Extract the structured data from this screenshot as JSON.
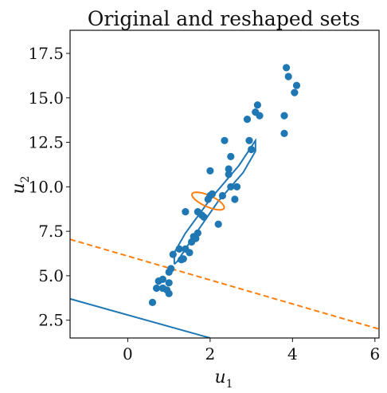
{
  "chart_data": {
    "type": "scatter",
    "title": "Original and reshaped sets",
    "xlabel": {
      "base": "u",
      "sub": "1"
    },
    "ylabel": {
      "base": "u",
      "sub": "2"
    },
    "xlim": [
      -1.4,
      6.1
    ],
    "ylim": [
      1.5,
      18.8
    ],
    "xticks": [
      0,
      2,
      4,
      6
    ],
    "yticks": [
      2.5,
      5.0,
      7.5,
      10.0,
      12.5,
      15.0,
      17.5
    ],
    "grid": false,
    "colors": {
      "blue": "#1f77b4",
      "orange": "#ff7f0e"
    },
    "points": [
      [
        0.6,
        3.5
      ],
      [
        0.7,
        4.3
      ],
      [
        0.75,
        4.7
      ],
      [
        0.85,
        4.8
      ],
      [
        0.85,
        4.3
      ],
      [
        0.95,
        4.2
      ],
      [
        1.0,
        4.0
      ],
      [
        1.0,
        4.6
      ],
      [
        1.0,
        5.2
      ],
      [
        1.05,
        5.4
      ],
      [
        1.1,
        6.2
      ],
      [
        1.25,
        6.5
      ],
      [
        1.3,
        5.9
      ],
      [
        1.35,
        5.95
      ],
      [
        1.4,
        6.5
      ],
      [
        1.4,
        8.6
      ],
      [
        1.5,
        6.3
      ],
      [
        1.55,
        6.9
      ],
      [
        1.6,
        7.2
      ],
      [
        1.65,
        7.1
      ],
      [
        1.7,
        7.4
      ],
      [
        1.7,
        8.6
      ],
      [
        1.8,
        8.4
      ],
      [
        1.85,
        8.3
      ],
      [
        1.95,
        9.3
      ],
      [
        2.0,
        10.9
      ],
      [
        2.0,
        9.5
      ],
      [
        2.05,
        9.6
      ],
      [
        2.2,
        7.9
      ],
      [
        2.3,
        9.5
      ],
      [
        2.35,
        12.6
      ],
      [
        2.45,
        10.7
      ],
      [
        2.45,
        11.0
      ],
      [
        2.5,
        10.0
      ],
      [
        2.5,
        11.7
      ],
      [
        2.6,
        9.3
      ],
      [
        2.65,
        10.0
      ],
      [
        2.9,
        13.8
      ],
      [
        2.95,
        12.6
      ],
      [
        3.0,
        12.1
      ],
      [
        3.1,
        14.2
      ],
      [
        3.15,
        14.6
      ],
      [
        3.2,
        14.0
      ],
      [
        3.8,
        14.0
      ],
      [
        3.8,
        13.0
      ],
      [
        3.85,
        16.7
      ],
      [
        3.9,
        16.2
      ],
      [
        4.05,
        15.3
      ],
      [
        4.1,
        15.7
      ]
    ],
    "outer_set": {
      "color": "#1f77b4",
      "path": [
        [
          1.13,
          5.65
        ],
        [
          1.13,
          6.3
        ],
        [
          1.4,
          7.4
        ],
        [
          2.0,
          9.3
        ],
        [
          2.7,
          11.2
        ],
        [
          3.1,
          12.6
        ],
        [
          3.1,
          12.0
        ],
        [
          2.8,
          10.8
        ],
        [
          2.2,
          9.2
        ],
        [
          1.6,
          7.2
        ],
        [
          1.2,
          5.8
        ],
        [
          1.13,
          5.65
        ]
      ]
    },
    "reshaped_set": {
      "color": "#ff7f0e",
      "center": [
        1.95,
        9.2
      ],
      "radius": [
        0.35,
        0.9
      ],
      "angle_deg": 58
    },
    "lines": [
      {
        "color": "#1f77b4",
        "style": "solid",
        "points": [
          [
            -1.4,
            3.7
          ],
          [
            2.0,
            1.5
          ]
        ]
      },
      {
        "color": "#ff7f0e",
        "style": "dashed",
        "points": [
          [
            -1.4,
            7.05
          ],
          [
            6.1,
            2.0
          ]
        ]
      }
    ]
  }
}
